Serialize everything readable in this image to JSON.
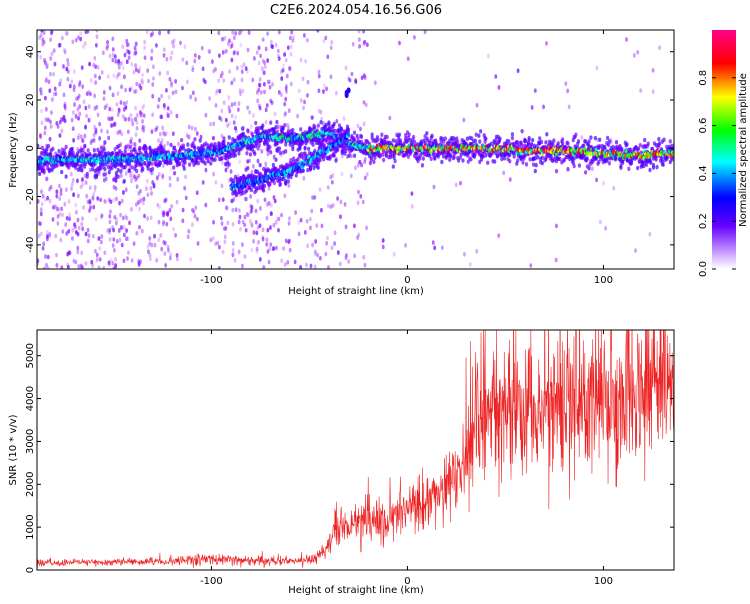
{
  "title": "C2E6.2024.054.16.56.G06",
  "chart_data": [
    {
      "type": "heatmap",
      "xlabel": "Height of straight line (km)",
      "ylabel": "Frequency (Hz)",
      "xlim": [
        -189,
        136
      ],
      "ylim": [
        -50,
        49
      ],
      "xticks": [
        -100,
        0,
        100
      ],
      "yticks": [
        -40,
        -20,
        0,
        20,
        40
      ],
      "colorbar": {
        "label": "Normalized spectral amplitude",
        "range": [
          0,
          1
        ],
        "ticks": [
          0.0,
          0.2,
          0.4,
          0.6,
          0.8
        ],
        "colors": [
          "#ffffff",
          "#9900ff",
          "#0000ff",
          "#00ffff",
          "#00ff00",
          "#ffff00",
          "#ff0000",
          "#ff0088"
        ]
      },
      "ridges": [
        {
          "x": [
            -189,
            -160,
            -130,
            -110,
            -95,
            -85,
            -75,
            -60,
            -50,
            -40,
            -30,
            -20,
            0,
            20,
            40,
            60,
            80,
            100,
            120,
            136
          ],
          "y": [
            -5,
            -5,
            -4,
            -3,
            -1,
            2,
            5,
            4,
            5,
            6,
            2,
            0,
            0,
            0,
            0,
            -1,
            -1,
            -2,
            -3,
            -2
          ]
        },
        {
          "x": [
            -90,
            -80,
            -70,
            -60,
            -50,
            -40,
            -30
          ],
          "y": [
            -16,
            -14,
            -12,
            -9,
            -5,
            0,
            5
          ]
        }
      ]
    },
    {
      "type": "line",
      "xlabel": "Height of straight line (km)",
      "ylabel": "SNR (10 * v/v)",
      "xlim": [
        -189,
        136
      ],
      "ylim": [
        0,
        5600
      ],
      "xticks": [
        -100,
        0,
        100
      ],
      "yticks": [
        0,
        1000,
        2000,
        3000,
        4000,
        5000
      ],
      "color": "#ee2222",
      "envelope_x": [
        -189,
        -160,
        -130,
        -100,
        -80,
        -60,
        -50,
        -42,
        -38,
        -30,
        -20,
        -10,
        0,
        10,
        20,
        30,
        35,
        40,
        60,
        80,
        100,
        120,
        136
      ],
      "envelope_y": [
        150,
        180,
        200,
        250,
        230,
        200,
        220,
        400,
        900,
        1000,
        1200,
        1200,
        1400,
        1500,
        2000,
        2500,
        3500,
        3500,
        3700,
        3800,
        3900,
        4100,
        4200
      ]
    }
  ]
}
